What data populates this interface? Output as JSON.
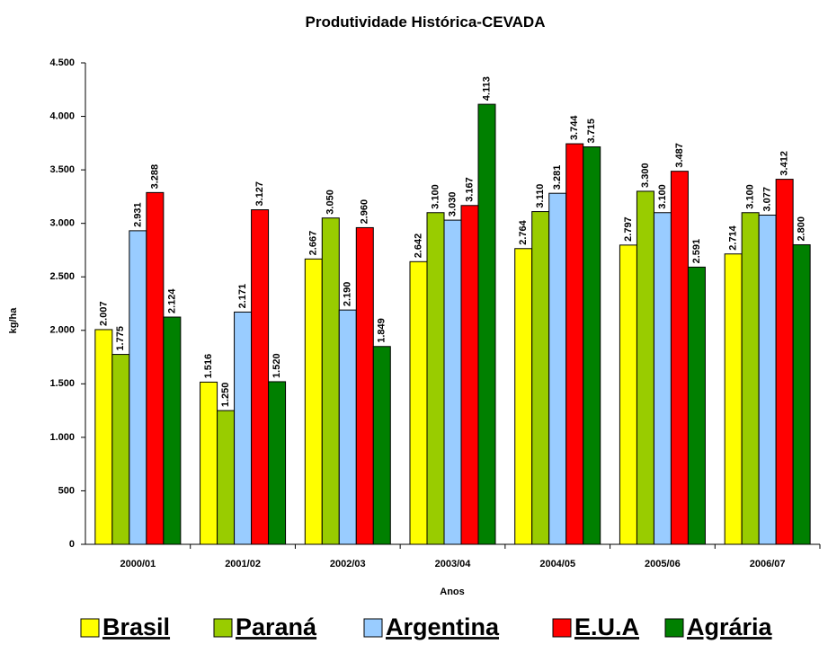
{
  "chart_data": {
    "type": "bar",
    "title": "Produtividade Histórica-CEVADA",
    "ylabel": "kg/ha",
    "xlabel": "Anos",
    "categories": [
      "2000/01",
      "2001/02",
      "2002/03",
      "2003/04",
      "2004/05",
      "2005/06",
      "2006/07"
    ],
    "series": [
      {
        "name": "Brasil",
        "color": "#ffff00",
        "values": [
          2007,
          1516,
          2667,
          2642,
          2764,
          2797,
          2714
        ],
        "value_labels": [
          "2.007",
          "1.516",
          "2.667",
          "2.642",
          "2.764",
          "2.797",
          "2.714"
        ]
      },
      {
        "name": "Paraná",
        "color": "#99cc00",
        "values": [
          1775,
          1250,
          3050,
          3100,
          3110,
          3300,
          3100
        ],
        "value_labels": [
          "1.775",
          "1.250",
          "3.050",
          "3.100",
          "3.110",
          "3.300",
          "3.100"
        ]
      },
      {
        "name": "Argentina",
        "color": "#99ccff",
        "values": [
          2931,
          2171,
          2190,
          3030,
          3281,
          3100,
          3077
        ],
        "value_labels": [
          "2.931",
          "2.171",
          "2.190",
          "3.030",
          "3.281",
          "3.100",
          "3.077"
        ]
      },
      {
        "name": "E.U.A",
        "color": "#ff0000",
        "values": [
          3288,
          3127,
          2960,
          3167,
          3744,
          3487,
          3412
        ],
        "value_labels": [
          "3.288",
          "3.127",
          "2.960",
          "3.167",
          "3.744",
          "3.487",
          "3.412"
        ]
      },
      {
        "name": "Agrária",
        "color": "#008000",
        "values": [
          2124,
          1520,
          1849,
          4113,
          3715,
          2591,
          2800
        ],
        "value_labels": [
          "2.124",
          "1.520",
          "1.849",
          "4.113",
          "3.715",
          "2.591",
          "2.800"
        ]
      }
    ],
    "ylim": [
      0,
      4500
    ],
    "yticks": [
      0,
      500,
      {
        "value": 1000,
        "label": "1.000"
      },
      {
        "value": 1500,
        "label": "1.500"
      },
      {
        "value": 2000,
        "label": "2.000"
      },
      {
        "value": 2500,
        "label": "2.500"
      },
      {
        "value": 3000,
        "label": "3.000"
      },
      {
        "value": 3500,
        "label": "3.500"
      },
      {
        "value": 4000,
        "label": "4.000"
      },
      {
        "value": 4500,
        "label": "4.500"
      }
    ],
    "grid": false,
    "legend": "bottom"
  }
}
